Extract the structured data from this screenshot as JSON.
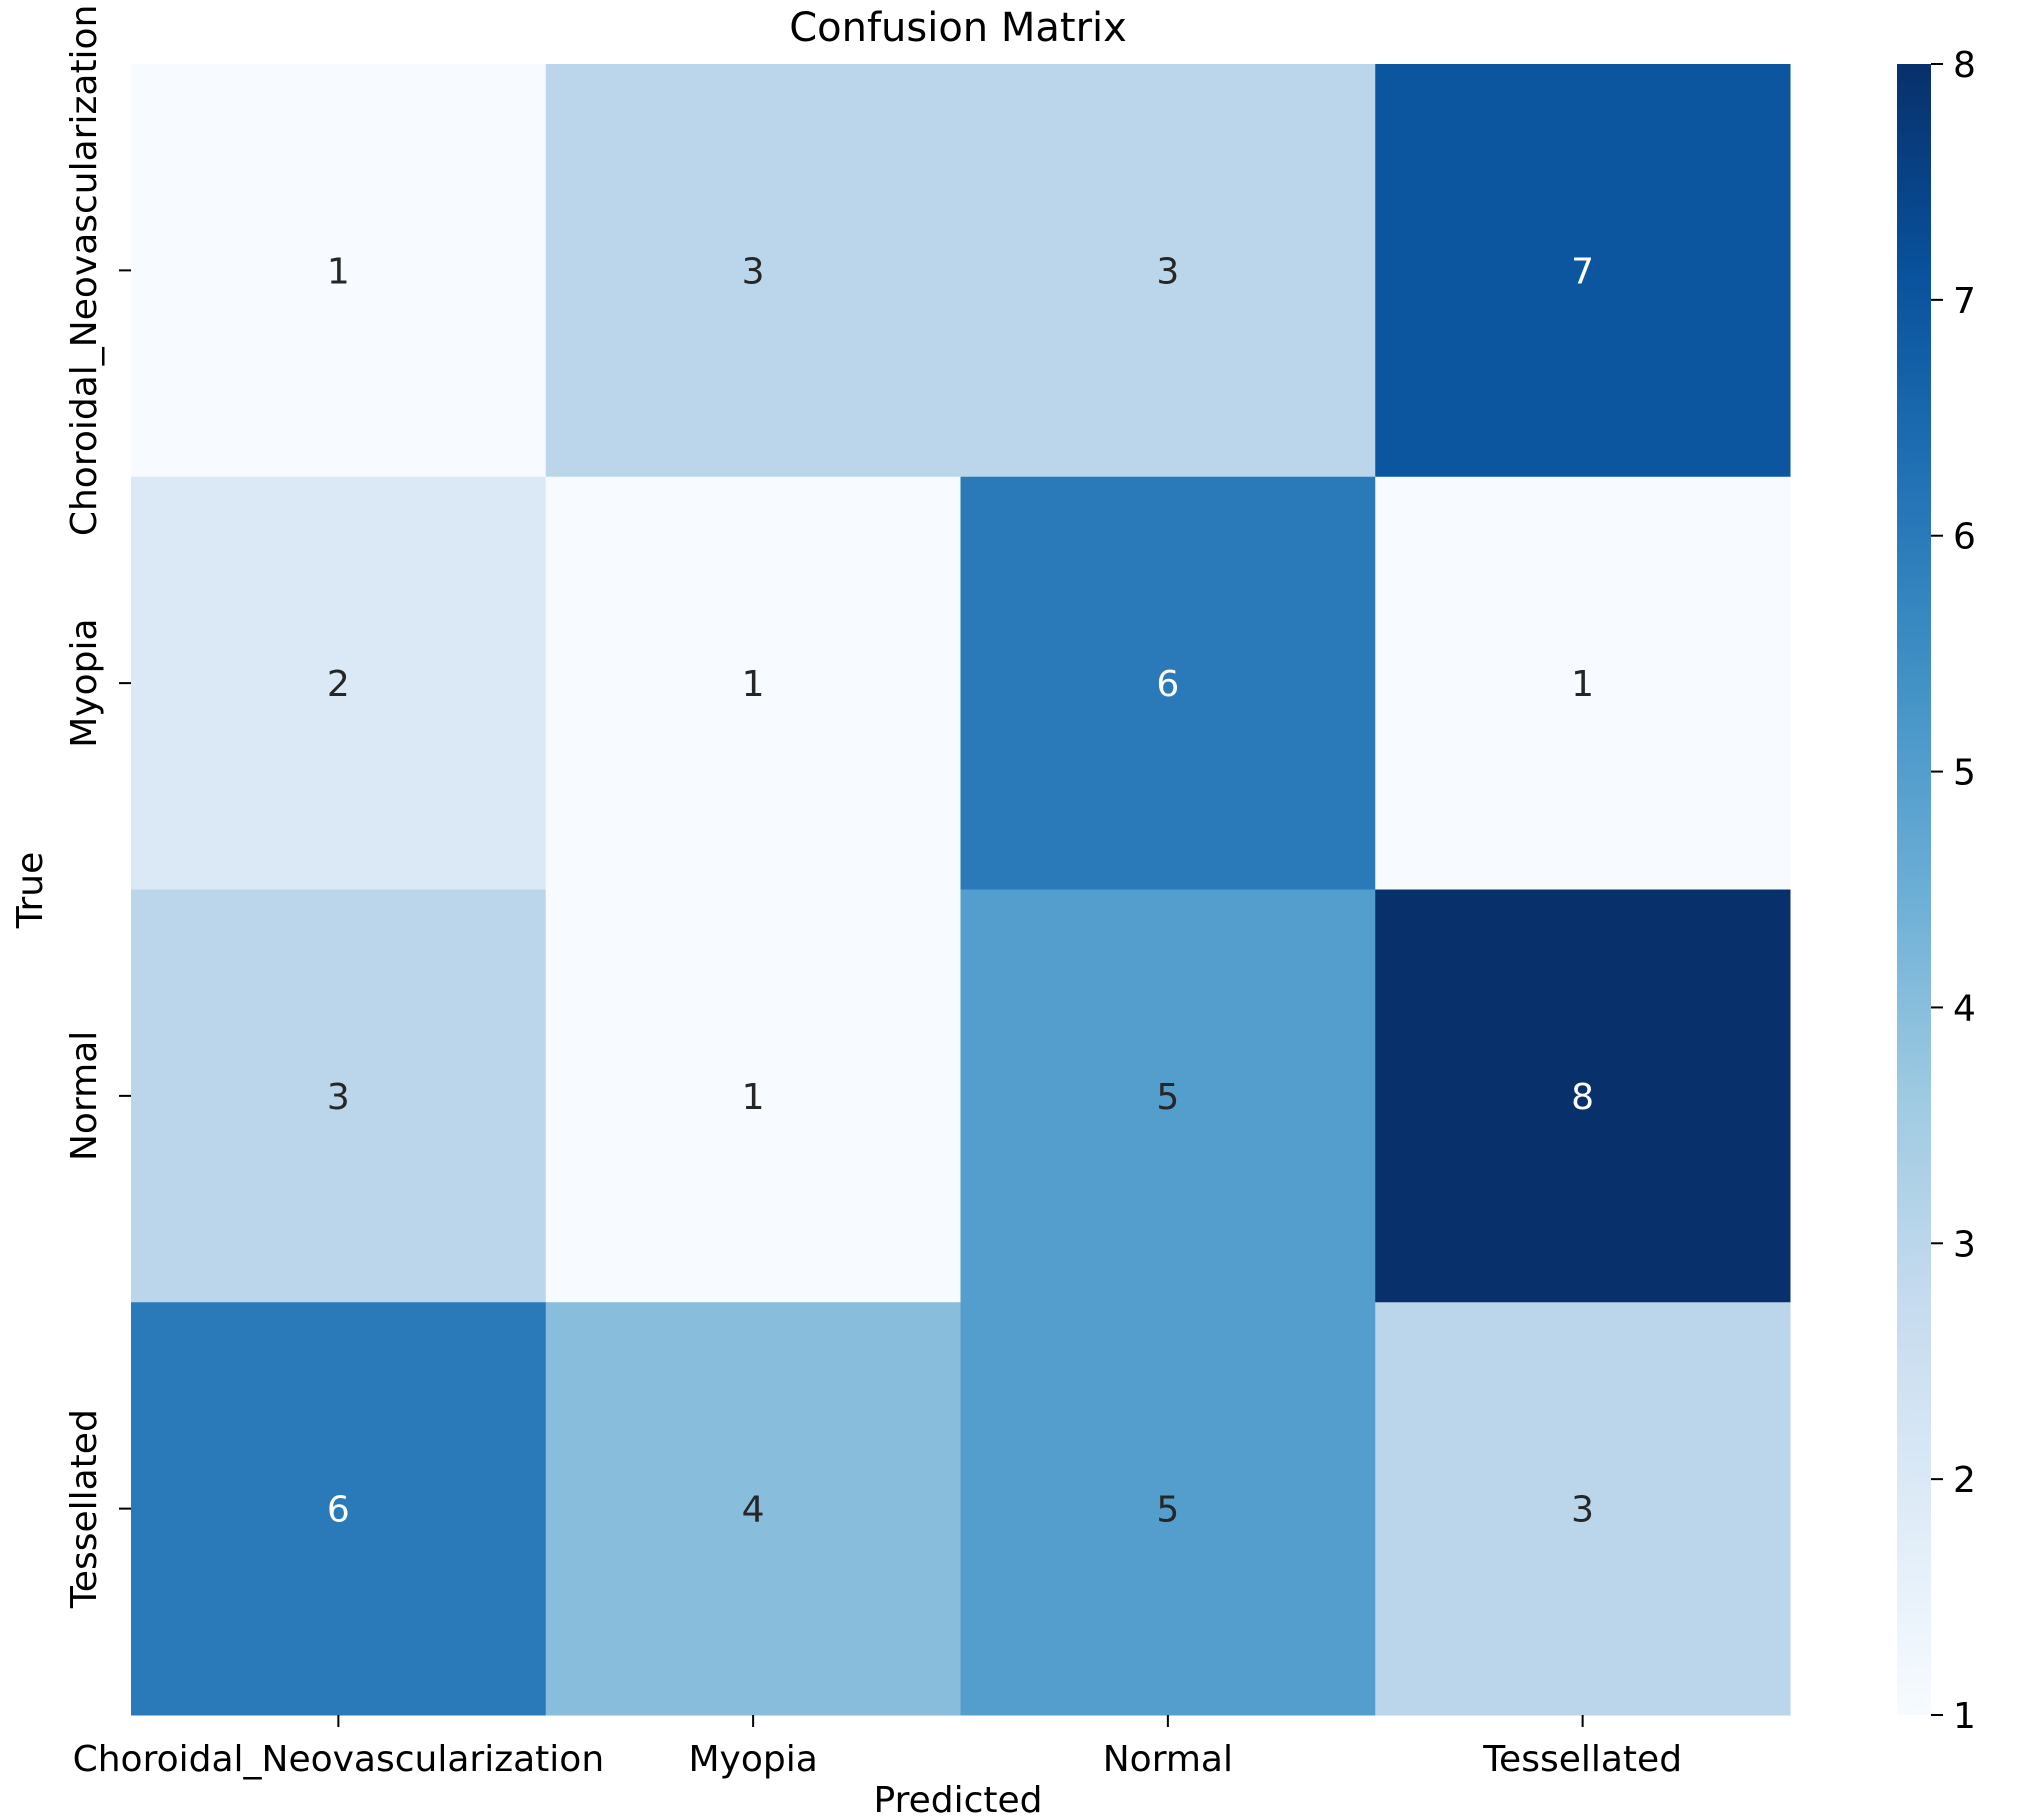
{
  "chart_data": {
    "type": "heatmap",
    "title": "Confusion Matrix",
    "xlabel": "Predicted",
    "ylabel": "True",
    "x_categories": [
      "Choroidal_Neovascularization",
      "Myopia",
      "Normal",
      "Tessellated"
    ],
    "y_categories": [
      "Choroidal_Neovascularization",
      "Myopia",
      "Normal",
      "Tessellated"
    ],
    "values": [
      [
        1,
        3,
        3,
        7
      ],
      [
        2,
        1,
        6,
        1
      ],
      [
        3,
        1,
        5,
        8
      ],
      [
        6,
        4,
        5,
        3
      ]
    ],
    "colorbar": {
      "min": 1,
      "max": 8,
      "ticks": [
        1,
        2,
        3,
        4,
        5,
        6,
        7,
        8
      ],
      "colormap": "Blues",
      "colors": [
        "#f7fbff",
        "#deebf7",
        "#c6dbef",
        "#9ecae1",
        "#6baed6",
        "#4292c6",
        "#2171b5",
        "#08519c",
        "#08306b"
      ]
    },
    "annotation_dark_color": "#262626",
    "annotation_light_color": "#ffffff"
  }
}
